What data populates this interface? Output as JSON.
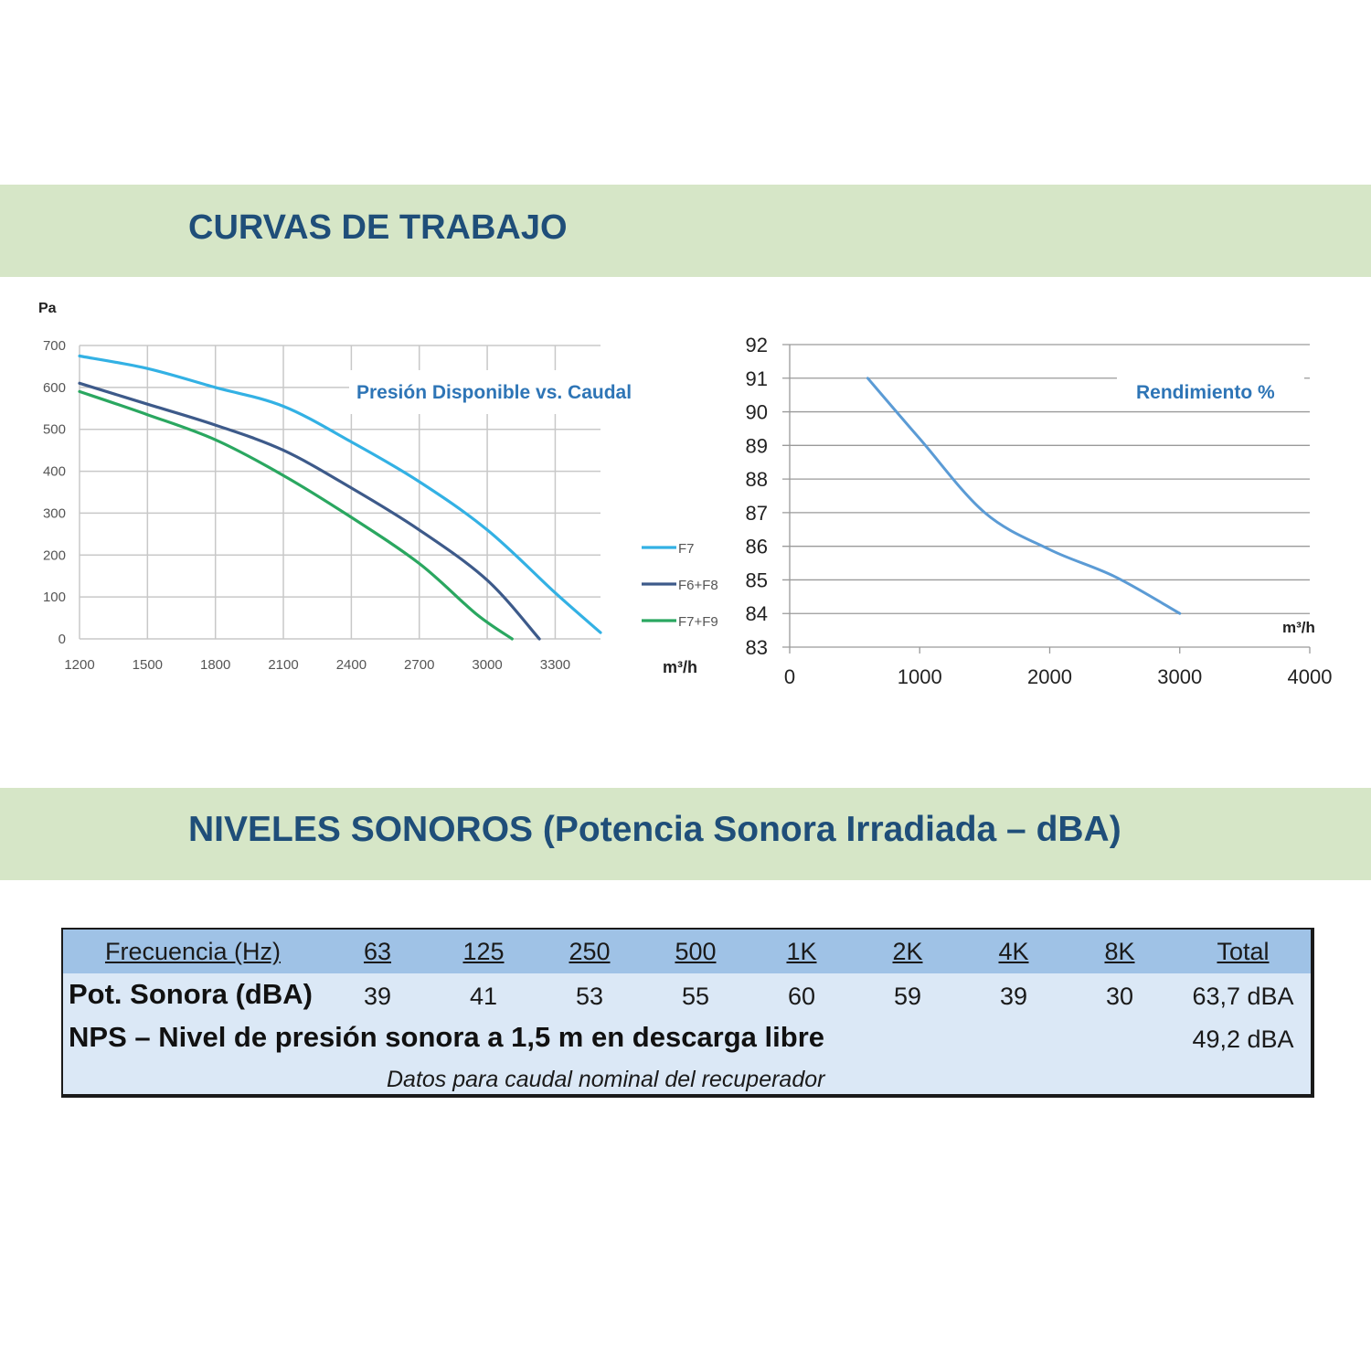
{
  "sections": {
    "curvas_title": "CURVAS DE TRABAJO",
    "niveles_title": "NIVELES SONOROS (Potencia Sonora Irradiada – dBA)"
  },
  "chart_data": [
    {
      "type": "line",
      "title": "Presión Disponible vs. Caudal",
      "ylabel": "Pa",
      "xlabel": "m³/h",
      "xlim": [
        1200,
        3500
      ],
      "ylim": [
        0,
        700
      ],
      "x_ticks": [
        "1200",
        "1500",
        "1800",
        "2100",
        "2400",
        "2700",
        "3000",
        "3300"
      ],
      "y_ticks": [
        "0",
        "100",
        "200",
        "300",
        "400",
        "500",
        "600",
        "700"
      ],
      "grid": true,
      "legend_position": "right",
      "series": [
        {
          "name": "F7",
          "color": "#33b1e4",
          "points": [
            [
              1200,
              675
            ],
            [
              1500,
              645
            ],
            [
              1800,
              600
            ],
            [
              2100,
              555
            ],
            [
              2400,
              470
            ],
            [
              2700,
              375
            ],
            [
              3000,
              260
            ],
            [
              3300,
              110
            ],
            [
              3500,
              15
            ]
          ]
        },
        {
          "name": "F6+F8",
          "color": "#3d5a8a",
          "points": [
            [
              1200,
              610
            ],
            [
              1500,
              560
            ],
            [
              1800,
              510
            ],
            [
              2100,
              450
            ],
            [
              2400,
              360
            ],
            [
              2700,
              260
            ],
            [
              3000,
              140
            ],
            [
              3230,
              0
            ]
          ]
        },
        {
          "name": "F7+F9",
          "color": "#2aa760",
          "points": [
            [
              1200,
              590
            ],
            [
              1500,
              535
            ],
            [
              1800,
              475
            ],
            [
              2100,
              390
            ],
            [
              2400,
              290
            ],
            [
              2700,
              180
            ],
            [
              2950,
              60
            ],
            [
              3110,
              0
            ]
          ]
        }
      ]
    },
    {
      "type": "line",
      "title": "Rendimiento %",
      "xlabel": "m³/h",
      "ylabel": "",
      "xlim": [
        0,
        4000
      ],
      "ylim": [
        83,
        92
      ],
      "x_ticks": [
        "0",
        "1000",
        "2000",
        "3000",
        "4000"
      ],
      "y_ticks": [
        "83",
        "84",
        "85",
        "86",
        "87",
        "88",
        "89",
        "90",
        "91",
        "92"
      ],
      "grid": true,
      "series": [
        {
          "color": "#5b9bd5",
          "points": [
            [
              600,
              91
            ],
            [
              1000,
              89.2
            ],
            [
              1500,
              87
            ],
            [
              2000,
              85.9
            ],
            [
              2500,
              85.1
            ],
            [
              3000,
              84
            ]
          ]
        }
      ]
    }
  ],
  "sound_table": {
    "header_label": "Frecuencia (Hz)",
    "frequencies": [
      "63",
      "125",
      "250",
      "500",
      "1K",
      "2K",
      "4K",
      "8K"
    ],
    "total_label": "Total",
    "row1_label": "Pot. Sonora (dBA)",
    "row1_values": [
      "39",
      "41",
      "53",
      "55",
      "60",
      "59",
      "39",
      "30"
    ],
    "row1_total": "63,7 dBA",
    "row2_label": "NPS – Nivel de presión sonora a 1,5 m en descarga libre",
    "row2_total": "49,2 dBA",
    "note": "Datos para caudal nominal del recuperador"
  }
}
